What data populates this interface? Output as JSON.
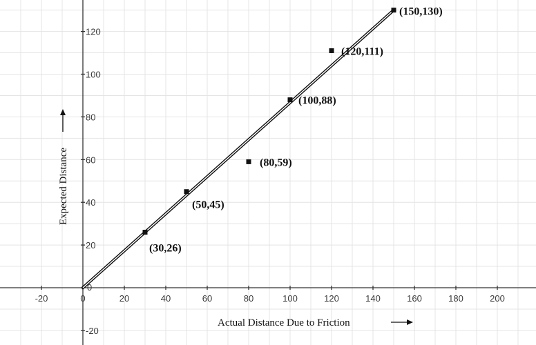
{
  "chart_data": {
    "type": "scatter",
    "xlabel": "Actual Distance Due to Friction",
    "ylabel": "Expected Distance",
    "xlim": [
      -30,
      218
    ],
    "ylim": [
      -27,
      135
    ],
    "x_ticks": [
      -20,
      0,
      20,
      40,
      60,
      80,
      100,
      120,
      140,
      160,
      180,
      200
    ],
    "y_ticks": [
      -20,
      20,
      40,
      60,
      80,
      100,
      120
    ],
    "origin_label": "0",
    "grid": true,
    "series": [
      {
        "points": [
          {
            "x": 30,
            "y": 26,
            "label": "(30,26)"
          },
          {
            "x": 50,
            "y": 45,
            "label": "(50,45)"
          },
          {
            "x": 80,
            "y": 59,
            "label": "(80,59)"
          },
          {
            "x": 100,
            "y": 88,
            "label": "(100,88)"
          },
          {
            "x": 120,
            "y": 111,
            "label": "(120,111)"
          },
          {
            "x": 150,
            "y": 130,
            "label": "(150,130)"
          }
        ]
      }
    ],
    "line": {
      "from": {
        "x": 0,
        "y": 0
      },
      "to": {
        "x": 150,
        "y": 130
      }
    }
  }
}
